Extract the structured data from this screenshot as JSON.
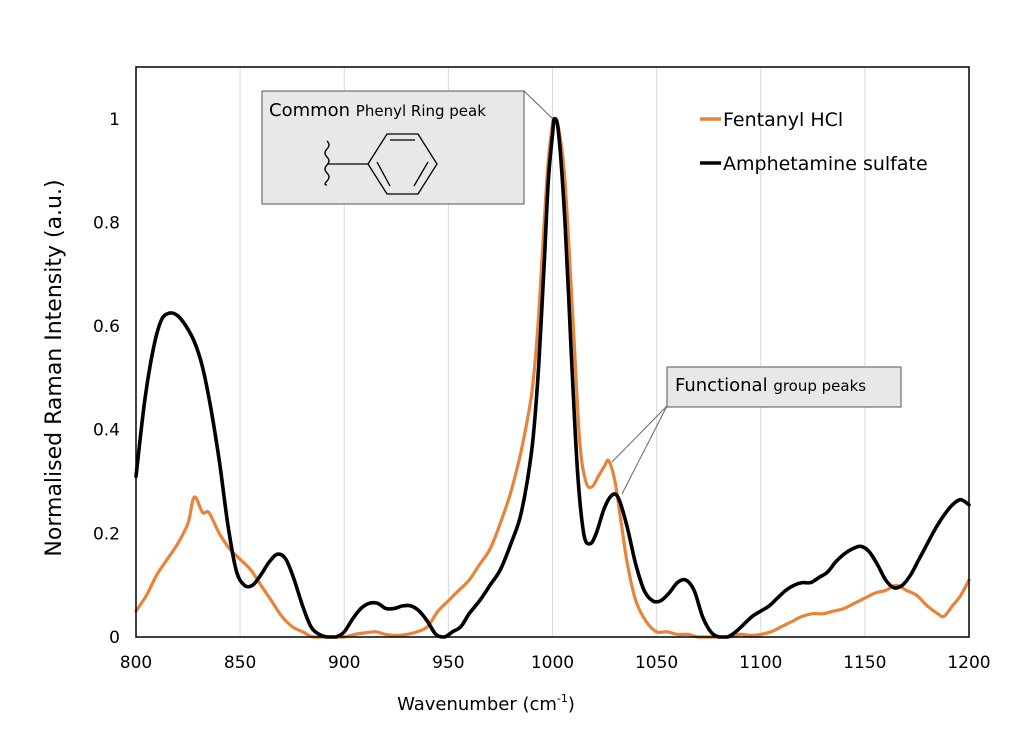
{
  "chart_data": {
    "type": "line",
    "xlabel_main": "Wavenumber (cm",
    "xlabel_sup": "-1",
    "xlabel_close": ")",
    "ylabel": "Normalised Raman Intensity (a.u.)",
    "xlim": [
      800,
      1200
    ],
    "ylim": [
      0,
      1.1
    ],
    "x_ticks": [
      "800",
      "850",
      "900",
      "950",
      "1000",
      "1050",
      "1100",
      "1150",
      "1200"
    ],
    "y_ticks": [
      "0",
      "0.2",
      "0.4",
      "0.6",
      "0.8",
      "1"
    ],
    "grid": "vertical",
    "legend_position": "top-right",
    "series": [
      {
        "name": "Fentanyl HCl",
        "color": "#E8833A",
        "points": [
          [
            800,
            0.05
          ],
          [
            805,
            0.08
          ],
          [
            810,
            0.12
          ],
          [
            815,
            0.15
          ],
          [
            820,
            0.18
          ],
          [
            825,
            0.22
          ],
          [
            828,
            0.27
          ],
          [
            832,
            0.24
          ],
          [
            835,
            0.24
          ],
          [
            840,
            0.2
          ],
          [
            845,
            0.17
          ],
          [
            850,
            0.15
          ],
          [
            855,
            0.13
          ],
          [
            860,
            0.1
          ],
          [
            865,
            0.07
          ],
          [
            870,
            0.04
          ],
          [
            875,
            0.02
          ],
          [
            880,
            0.01
          ],
          [
            885,
            0.0
          ],
          [
            890,
            0.0
          ],
          [
            895,
            0.0
          ],
          [
            900,
            0.0
          ],
          [
            905,
            0.005
          ],
          [
            910,
            0.008
          ],
          [
            915,
            0.01
          ],
          [
            920,
            0.005
          ],
          [
            925,
            0.003
          ],
          [
            930,
            0.005
          ],
          [
            935,
            0.01
          ],
          [
            940,
            0.02
          ],
          [
            945,
            0.05
          ],
          [
            950,
            0.07
          ],
          [
            955,
            0.09
          ],
          [
            960,
            0.11
          ],
          [
            965,
            0.14
          ],
          [
            970,
            0.17
          ],
          [
            975,
            0.22
          ],
          [
            980,
            0.28
          ],
          [
            985,
            0.36
          ],
          [
            990,
            0.47
          ],
          [
            993,
            0.6
          ],
          [
            996,
            0.8
          ],
          [
            998,
            0.92
          ],
          [
            1000,
            0.99
          ],
          [
            1001,
            1.0
          ],
          [
            1003,
            0.98
          ],
          [
            1006,
            0.88
          ],
          [
            1010,
            0.6
          ],
          [
            1013,
            0.38
          ],
          [
            1016,
            0.3
          ],
          [
            1019,
            0.29
          ],
          [
            1022,
            0.31
          ],
          [
            1025,
            0.33
          ],
          [
            1027,
            0.34
          ],
          [
            1030,
            0.3
          ],
          [
            1033,
            0.22
          ],
          [
            1036,
            0.14
          ],
          [
            1040,
            0.07
          ],
          [
            1045,
            0.03
          ],
          [
            1050,
            0.01
          ],
          [
            1055,
            0.01
          ],
          [
            1060,
            0.005
          ],
          [
            1065,
            0.005
          ],
          [
            1070,
            0.0
          ],
          [
            1075,
            0.0
          ],
          [
            1080,
            0.0
          ],
          [
            1085,
            0.0
          ],
          [
            1090,
            0.005
          ],
          [
            1095,
            0.003
          ],
          [
            1100,
            0.005
          ],
          [
            1105,
            0.01
          ],
          [
            1110,
            0.02
          ],
          [
            1115,
            0.03
          ],
          [
            1120,
            0.04
          ],
          [
            1125,
            0.045
          ],
          [
            1130,
            0.045
          ],
          [
            1135,
            0.05
          ],
          [
            1140,
            0.055
          ],
          [
            1145,
            0.065
          ],
          [
            1150,
            0.075
          ],
          [
            1155,
            0.085
          ],
          [
            1160,
            0.09
          ],
          [
            1165,
            0.1
          ],
          [
            1170,
            0.09
          ],
          [
            1175,
            0.08
          ],
          [
            1180,
            0.06
          ],
          [
            1185,
            0.045
          ],
          [
            1188,
            0.04
          ],
          [
            1192,
            0.06
          ],
          [
            1196,
            0.08
          ],
          [
            1200,
            0.11
          ]
        ]
      },
      {
        "name": "Amphetamine sulfate",
        "color": "#000000",
        "points": [
          [
            800,
            0.31
          ],
          [
            804,
            0.45
          ],
          [
            808,
            0.55
          ],
          [
            812,
            0.61
          ],
          [
            816,
            0.625
          ],
          [
            820,
            0.62
          ],
          [
            824,
            0.6
          ],
          [
            828,
            0.57
          ],
          [
            832,
            0.52
          ],
          [
            836,
            0.44
          ],
          [
            840,
            0.34
          ],
          [
            844,
            0.22
          ],
          [
            848,
            0.13
          ],
          [
            852,
            0.1
          ],
          [
            856,
            0.1
          ],
          [
            860,
            0.12
          ],
          [
            864,
            0.145
          ],
          [
            868,
            0.16
          ],
          [
            872,
            0.15
          ],
          [
            876,
            0.11
          ],
          [
            880,
            0.06
          ],
          [
            884,
            0.02
          ],
          [
            888,
            0.005
          ],
          [
            892,
            0.0
          ],
          [
            896,
            0.0
          ],
          [
            900,
            0.01
          ],
          [
            904,
            0.035
          ],
          [
            908,
            0.055
          ],
          [
            912,
            0.065
          ],
          [
            916,
            0.065
          ],
          [
            920,
            0.055
          ],
          [
            924,
            0.055
          ],
          [
            928,
            0.06
          ],
          [
            932,
            0.06
          ],
          [
            936,
            0.05
          ],
          [
            940,
            0.03
          ],
          [
            944,
            0.005
          ],
          [
            948,
            0.0
          ],
          [
            952,
            0.01
          ],
          [
            956,
            0.02
          ],
          [
            960,
            0.045
          ],
          [
            965,
            0.07
          ],
          [
            970,
            0.1
          ],
          [
            975,
            0.13
          ],
          [
            980,
            0.18
          ],
          [
            985,
            0.24
          ],
          [
            990,
            0.36
          ],
          [
            993,
            0.5
          ],
          [
            996,
            0.72
          ],
          [
            998,
            0.88
          ],
          [
            1000,
            0.97
          ],
          [
            1001,
            1.0
          ],
          [
            1003,
            0.97
          ],
          [
            1006,
            0.8
          ],
          [
            1009,
            0.55
          ],
          [
            1012,
            0.32
          ],
          [
            1015,
            0.2
          ],
          [
            1018,
            0.18
          ],
          [
            1021,
            0.2
          ],
          [
            1025,
            0.25
          ],
          [
            1029,
            0.275
          ],
          [
            1032,
            0.265
          ],
          [
            1036,
            0.21
          ],
          [
            1040,
            0.14
          ],
          [
            1044,
            0.09
          ],
          [
            1048,
            0.07
          ],
          [
            1052,
            0.07
          ],
          [
            1056,
            0.085
          ],
          [
            1060,
            0.105
          ],
          [
            1064,
            0.11
          ],
          [
            1068,
            0.09
          ],
          [
            1072,
            0.04
          ],
          [
            1076,
            0.01
          ],
          [
            1080,
            0.0
          ],
          [
            1084,
            0.0
          ],
          [
            1088,
            0.01
          ],
          [
            1092,
            0.025
          ],
          [
            1096,
            0.04
          ],
          [
            1100,
            0.05
          ],
          [
            1104,
            0.06
          ],
          [
            1108,
            0.075
          ],
          [
            1112,
            0.09
          ],
          [
            1116,
            0.1
          ],
          [
            1120,
            0.105
          ],
          [
            1124,
            0.105
          ],
          [
            1128,
            0.115
          ],
          [
            1132,
            0.125
          ],
          [
            1136,
            0.145
          ],
          [
            1140,
            0.16
          ],
          [
            1144,
            0.17
          ],
          [
            1148,
            0.175
          ],
          [
            1152,
            0.165
          ],
          [
            1156,
            0.14
          ],
          [
            1160,
            0.11
          ],
          [
            1164,
            0.095
          ],
          [
            1168,
            0.1
          ],
          [
            1172,
            0.12
          ],
          [
            1176,
            0.15
          ],
          [
            1180,
            0.18
          ],
          [
            1184,
            0.21
          ],
          [
            1188,
            0.235
          ],
          [
            1192,
            0.255
          ],
          [
            1196,
            0.265
          ],
          [
            1200,
            0.255
          ]
        ]
      }
    ],
    "annotations": [
      {
        "label_big": "Common ",
        "label_small": "Phenyl Ring peak",
        "points_to": [
          [
            1000,
            1.0
          ]
        ],
        "has_structure": true
      },
      {
        "label_big": "Functional ",
        "label_small": "group peaks",
        "points_to": [
          [
            1027,
            0.34
          ],
          [
            1030,
            0.275
          ]
        ]
      }
    ]
  }
}
